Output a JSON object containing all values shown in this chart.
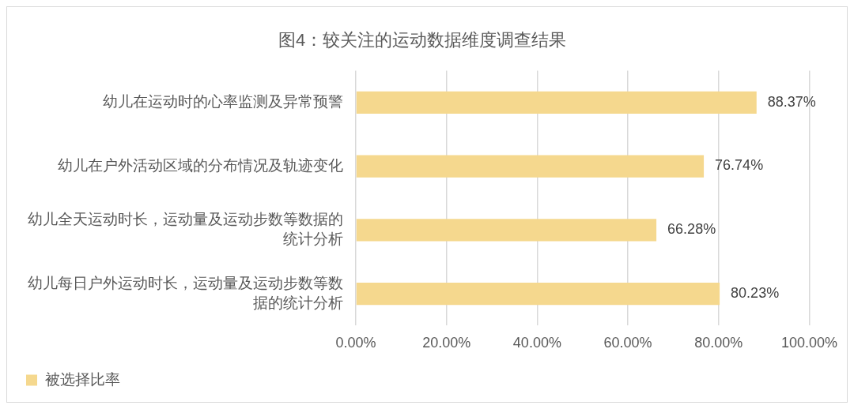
{
  "chart_data": {
    "type": "bar",
    "orientation": "horizontal",
    "title": "图4：较关注的运动数据维度调查结果",
    "categories": [
      "幼儿在运动时的心率监测及异常预警",
      "幼儿在户外活动区域的分布情况及轨迹变化",
      "幼儿全天运动时长，运动量及运动步数等数据的统计分析",
      "幼儿每日户外运动时长，运动量及运动步数等数据的统计分析"
    ],
    "series": [
      {
        "name": "被选择比率",
        "color": "#f5d88e",
        "values": [
          88.37,
          76.74,
          66.28,
          80.23
        ],
        "value_labels": [
          "88.37%",
          "76.74%",
          "66.28%",
          "80.23%"
        ]
      }
    ],
    "xlim": [
      0,
      100
    ],
    "xticks": [
      {
        "value": 0,
        "label": "0.00%"
      },
      {
        "value": 20,
        "label": "20.00%"
      },
      {
        "value": 40,
        "label": "40.00%"
      },
      {
        "value": 60,
        "label": "60.00%"
      },
      {
        "value": 80,
        "label": "80.00%"
      },
      {
        "value": 100,
        "label": "100.00%"
      }
    ],
    "grid": "x",
    "legend": "bottom left"
  }
}
